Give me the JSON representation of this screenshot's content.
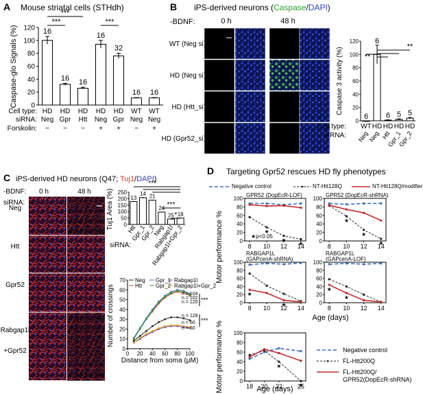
{
  "colors": {
    "caspase_green": "#2ca02c",
    "dapi_blue": "#2a3fd0",
    "tuj1_red": "#e23b2e",
    "neg_ctrl_blue": "#3a6ec6",
    "modifier_red": "#c62828"
  },
  "panel_a": {
    "letter": "A",
    "title": "Mouse striatal cells (STHdh)",
    "ylabel": "Caspase-glo Signals (%)",
    "row_labels": [
      "Cell type:",
      "siRNA:",
      "Forskolin:"
    ],
    "sig": [
      "***",
      "***",
      "***"
    ],
    "chart_data": {
      "type": "bar",
      "ylim": [
        0,
        120
      ],
      "yticks": [
        "0",
        "20",
        "40",
        "60",
        "80",
        "100",
        "120"
      ],
      "cell_type": [
        "HD",
        "HD",
        "HD",
        "HD",
        "HD",
        "WT",
        "WT"
      ],
      "sirna": [
        "Neg",
        "Gpr",
        "Htt",
        "Neg",
        "Gpr",
        "Neg",
        "Neg"
      ],
      "forskolin": [
        "−",
        "−",
        "−",
        "+",
        "+",
        "−",
        "+"
      ],
      "values": [
        100,
        32,
        26,
        94,
        76,
        11,
        11
      ],
      "errors": [
        6,
        1.5,
        1.5,
        6,
        4,
        0.5,
        0.5
      ],
      "n_labels": [
        "16",
        "16",
        "16",
        "16",
        "32",
        "16",
        "16"
      ]
    }
  },
  "panel_b": {
    "letter": "B",
    "title_prefix": "iPS-derived neurons (",
    "title_caspase": "Caspase",
    "title_slash": "/",
    "title_dapi": "DAPI",
    "title_suffix": ")",
    "bdnf_label": "-BDNF:",
    "time_labels": [
      "0 h",
      "48 h"
    ],
    "row_labels": [
      "WT (Neg si)",
      "HD (Neg si)",
      "HD (Htt_si)",
      "HD (Gpr52_si)"
    ],
    "ylabel": "Caspase 3 activity (%)",
    "row_axis_labels": [
      "Cell type:",
      "siRNA:"
    ],
    "sig": [
      "**",
      "**"
    ],
    "chart_data": {
      "type": "bar",
      "ylim": [
        0,
        120
      ],
      "yticks": [
        "0",
        "20",
        "40",
        "60",
        "80",
        "100",
        "120"
      ],
      "cell_type": [
        "WT",
        "HD",
        "HD",
        "HD",
        "HD"
      ],
      "sirna": [
        "Neg",
        "Neg",
        "Htt",
        "Gpr_1",
        "Gpr_2"
      ],
      "values": [
        0,
        100,
        1,
        2,
        4
      ],
      "errors": [
        0,
        14,
        0.5,
        1,
        1
      ],
      "n_labels": [
        "6",
        "6",
        "6",
        "5",
        "5"
      ]
    }
  },
  "panel_c": {
    "letter": "C",
    "title_prefix": "iPS-derived HD neurons (Q47; ",
    "title_tuj1": "Tuj1",
    "title_slash": "/",
    "title_dapi": "DAPI",
    "title_suffix": ")",
    "bdnf_label": "-BDNF:",
    "time_labels": [
      "0 h",
      "48 h"
    ],
    "sirna_label": "siRNA:",
    "row_labels": [
      "Neg",
      "Htt",
      "Gpr52",
      "Rabgap1l",
      "+Gpr52"
    ],
    "bar_chart": {
      "type": "bar",
      "ylabel": "Tuj1 Area (%)",
      "ylim": [
        0,
        250
      ],
      "yticks": [
        "0",
        "50",
        "100",
        "150",
        "200",
        "250"
      ],
      "sirna_axis_label": "siRNA:",
      "categories": [
        "Htt",
        "Gpr_1",
        "Gpr_2",
        "Neg",
        "Rabgap1l",
        "Rabgap1l+Gpr_2"
      ],
      "values": [
        178,
        208,
        188,
        96,
        42,
        50
      ],
      "errors": [
        4,
        5,
        5,
        4,
        3,
        3
      ],
      "n_labels": [
        "13",
        "14",
        "21",
        "24",
        "25",
        "18"
      ],
      "sig": [
        "***",
        "***",
        "*"
      ]
    },
    "line_chart": {
      "type": "line",
      "ylabel": "Number of crossings",
      "xlabel": "Distance from soma (μM)",
      "xlim": [
        0,
        100
      ],
      "ylim": [
        0,
        70
      ],
      "xticks": [
        "0",
        "20",
        "40",
        "60",
        "80",
        "100"
      ],
      "yticks": [
        "0",
        "10",
        "20",
        "30",
        "40",
        "50",
        "60",
        "70"
      ],
      "x": [
        10,
        20,
        30,
        40,
        50,
        60,
        70,
        80,
        90,
        100
      ],
      "legend": [
        "Neg",
        "Htt",
        "Gpr_1",
        "Gpr_2",
        "Rabgap1l",
        "Rabgap1l+Gpr_2"
      ],
      "series": [
        {
          "name": "Neg",
          "color": "#222222",
          "values": [
            8,
            13,
            18,
            23,
            27,
            30,
            32,
            32,
            31,
            29
          ]
        },
        {
          "name": "Htt",
          "color": "#e23b2e",
          "values": [
            10,
            20,
            30,
            38,
            46,
            52,
            56,
            58,
            57,
            54
          ]
        },
        {
          "name": "Gpr_1",
          "color": "#3a6ec6",
          "values": [
            11,
            21,
            31,
            40,
            48,
            54,
            58,
            60,
            59,
            56
          ]
        },
        {
          "name": "Gpr_2",
          "color": "#2ca02c",
          "values": [
            10,
            20,
            30,
            39,
            47,
            53,
            57,
            59,
            58,
            55
          ]
        },
        {
          "name": "Rabgap1l",
          "color": "#7b3fa0",
          "values": [
            6,
            10,
            14,
            17,
            20,
            22,
            23,
            23,
            22,
            21
          ]
        },
        {
          "name": "Rabgap1l+Gpr_2",
          "color": "#e0a020",
          "values": [
            6,
            11,
            15,
            18,
            21,
            23,
            24,
            24,
            23,
            22
          ]
        }
      ],
      "n_labels": [
        "n = 104",
        "n = 102",
        "n = 120",
        "n = 128",
        "n = 60",
        "n = 60"
      ],
      "sig": [
        "***",
        "***"
      ]
    }
  },
  "panel_d": {
    "letter": "D",
    "title": "Targeting Gpr52 rescues HD fly phenotypes",
    "legend_top": [
      "Negative control",
      "NT-Htt128Q",
      "NT-Htt128Q/modifier"
    ],
    "legend_bottom": [
      "Negative control",
      "FL-Htt200Q",
      "FL-Htt200Q/",
      "GPR52(DopEcR-shRNA)"
    ],
    "ylabel": "Motor performance %",
    "xlabel": "Age (days)",
    "pval": "★p<0.05",
    "subplots": [
      {
        "type": "line",
        "title1": "GPR52 (DopEcR-LOF)",
        "title2": "",
        "x": [
          8,
          10,
          12,
          14
        ],
        "xticks": [
          "8",
          "10",
          "12",
          "14"
        ],
        "ylim": [
          0,
          100
        ],
        "yticks": [
          "0",
          "20",
          "40",
          "60",
          "80",
          "100"
        ],
        "series": [
          {
            "name": "Negative control",
            "values": [
              88,
              88,
              85,
              88
            ]
          },
          {
            "name": "NT-Htt128Q",
            "values": [
              56,
              32,
              12,
              4
            ]
          },
          {
            "name": "NT-Htt128Q/modifier",
            "values": [
              85,
              82,
              83,
              78
            ]
          }
        ],
        "stars": [
          "",
          "★",
          "★",
          "★"
        ]
      },
      {
        "type": "line",
        "title1": "GPR52 (DopEcR-shRNA)",
        "title2": "",
        "x": [
          8,
          10,
          12,
          14
        ],
        "xticks": [
          "8",
          "10",
          "12",
          "14"
        ],
        "ylim": [
          0,
          100
        ],
        "yticks": [
          "0",
          "20",
          "40",
          "60",
          "80",
          "100"
        ],
        "series": [
          {
            "name": "Negative control",
            "values": [
              88,
              86,
              88,
              88
            ]
          },
          {
            "name": "NT-Htt128Q",
            "values": [
              83,
              58,
              26,
              5
            ]
          },
          {
            "name": "NT-Htt128Q/modifier",
            "values": [
              84,
              74,
              66,
              48
            ]
          }
        ],
        "stars": [
          "",
          "★",
          "★",
          "★"
        ]
      },
      {
        "type": "line",
        "title1": "RABGAP1L",
        "title2": "(GAPcenA-shRNA)",
        "x": [
          8,
          10,
          12,
          14
        ],
        "xticks": [
          "8",
          "10",
          "12",
          "14"
        ],
        "ylim": [
          0,
          100
        ],
        "yticks": [
          "0",
          "20",
          "40",
          "60",
          "80",
          "100"
        ],
        "series": [
          {
            "name": "Negative control",
            "values": [
              94,
              97,
              95,
              98
            ]
          },
          {
            "name": "NT-Htt128Q",
            "values": [
              72,
              42,
              22,
              4
            ]
          },
          {
            "name": "NT-Htt128Q/modifier",
            "values": [
              32,
              24,
              6,
              2
            ]
          }
        ],
        "stars": [
          "★",
          "",
          "★",
          ""
        ]
      },
      {
        "type": "line",
        "title1": "RABGAP1L",
        "title2": "(GAPcenA-LOF)",
        "x": [
          8,
          10,
          12,
          14
        ],
        "xticks": [
          "8",
          "10",
          "12",
          "14"
        ],
        "ylim": [
          0,
          100
        ],
        "yticks": [
          "0",
          "20",
          "40",
          "60",
          "80",
          "100"
        ],
        "series": [
          {
            "name": "Negative control",
            "values": [
              95,
              97,
              95,
              97
            ]
          },
          {
            "name": "NT-Htt128Q",
            "values": [
              58,
              40,
              20,
              2
            ]
          },
          {
            "name": "NT-Htt128Q/modifier",
            "values": [
              44,
              24,
              6,
              2
            ]
          }
        ],
        "stars": [
          "★",
          "★",
          "",
          ""
        ]
      },
      {
        "type": "line",
        "title1": "",
        "title2": "",
        "x": [
          18,
          20,
          22,
          25
        ],
        "xticks": [
          "18",
          "20",
          "22",
          "25"
        ],
        "ylim": [
          0,
          100
        ],
        "yticks": [
          "0",
          "20",
          "40",
          "60",
          "80",
          "100"
        ],
        "series": [
          {
            "name": "Negative control",
            "values": [
              46,
              60,
              68,
              62
            ]
          },
          {
            "name": "FL-Htt200Q",
            "values": [
              54,
              63,
              40,
              0
            ]
          },
          {
            "name": "FL-Htt200Q/GPR52(DopEcR-shRNA)",
            "values": [
              50,
              66,
              58,
              42
            ]
          }
        ],
        "stars": [
          "",
          "",
          "★",
          "★"
        ]
      }
    ]
  }
}
